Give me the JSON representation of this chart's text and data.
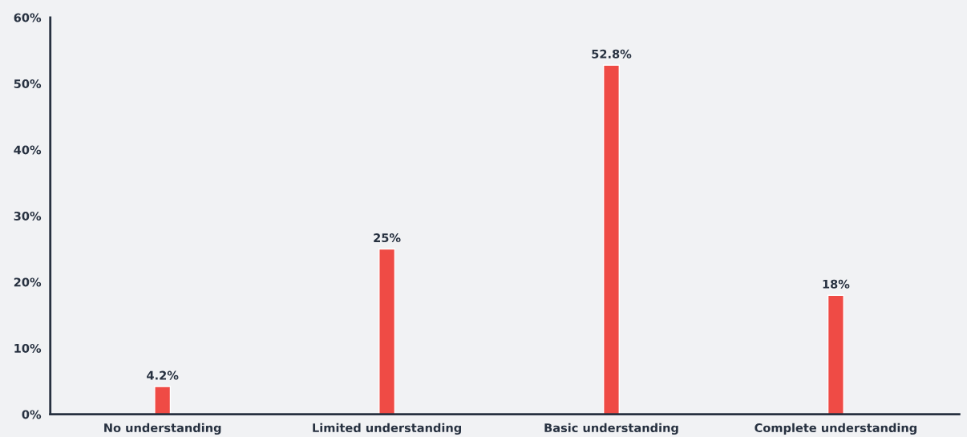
{
  "chart_data": {
    "type": "bar",
    "categories": [
      "No understanding",
      "Limited understanding",
      "Basic understanding",
      "Complete understanding"
    ],
    "values": [
      4.2,
      25,
      52.8,
      18
    ],
    "color": "#ef4b45",
    "value_labels": [
      "4.2%",
      "25%",
      "52.8%",
      "18%"
    ],
    "ylim": [
      0,
      60
    ],
    "yticks": [
      {
        "value": 0,
        "label": "0%"
      },
      {
        "value": 10,
        "label": "10%"
      },
      {
        "value": 20,
        "label": "20%"
      },
      {
        "value": 30,
        "label": "30%"
      },
      {
        "value": 40,
        "label": "40%"
      },
      {
        "value": 50,
        "label": "50%"
      },
      {
        "value": 60,
        "label": "60%"
      }
    ],
    "grid": false,
    "legend": false
  }
}
